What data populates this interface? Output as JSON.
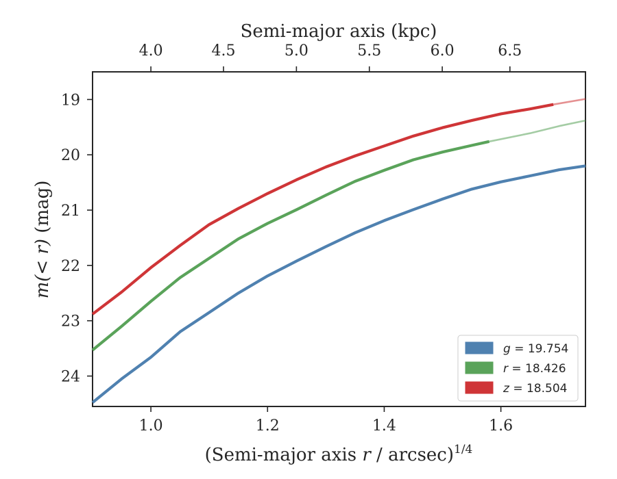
{
  "chart_data": {
    "type": "line",
    "xlabel": "(Semi-major axis r / arcsec)",
    "xlabel_exponent": "1/4",
    "ylabel": "m(< r) (mag)",
    "top_xlabel": "Semi-major axis (kpc)",
    "xlim": [
      0.9,
      1.745
    ],
    "ylim": [
      24.55,
      18.5
    ],
    "y_inverted": true,
    "xticks": [
      1.0,
      1.2,
      1.4,
      1.6
    ],
    "xtick_labels": [
      "1.0",
      "1.2",
      "1.4",
      "1.6"
    ],
    "yticks": [
      19,
      20,
      21,
      22,
      23,
      24
    ],
    "ytick_labels": [
      "19",
      "20",
      "21",
      "22",
      "23",
      "24"
    ],
    "top_xticks_kpc": [
      4.0,
      4.5,
      5.0,
      5.5,
      6.0,
      6.5
    ],
    "top_xtick_labels": [
      "4.0",
      "4.5",
      "5.0",
      "5.5",
      "6.0",
      "6.5"
    ],
    "kpc_conversion_note_units": "top axis kpc at bottom-axis positions",
    "top_xtick_positions": [
      1.0,
      1.1245,
      1.2495,
      1.3745,
      1.4995,
      1.6155
    ],
    "grid": false,
    "legend_location": "lower right",
    "series": [
      {
        "name": "g = 19.754",
        "legend_var": "g",
        "legend_value": "19.754",
        "color": "#4f81b0",
        "x": [
          0.9,
          0.95,
          1.0,
          1.05,
          1.1,
          1.15,
          1.2,
          1.25,
          1.3,
          1.35,
          1.4,
          1.45,
          1.5,
          1.55,
          1.6,
          1.65,
          1.7,
          1.745
        ],
        "y": [
          24.48,
          24.05,
          23.66,
          23.2,
          22.85,
          22.5,
          22.19,
          21.92,
          21.66,
          21.41,
          21.19,
          20.99,
          20.8,
          20.62,
          20.49,
          20.38,
          20.27,
          20.2
        ],
        "faded_from_x": 1.745
      },
      {
        "name": "r = 18.426",
        "legend_var": "r",
        "legend_value": "18.426",
        "color": "#5aa35a",
        "x": [
          0.9,
          0.95,
          1.0,
          1.05,
          1.1,
          1.15,
          1.2,
          1.25,
          1.3,
          1.35,
          1.4,
          1.45,
          1.5,
          1.55,
          1.58,
          1.65,
          1.7,
          1.745
        ],
        "y": [
          23.53,
          23.1,
          22.65,
          22.22,
          21.87,
          21.52,
          21.24,
          20.99,
          20.73,
          20.48,
          20.28,
          20.09,
          19.95,
          19.83,
          19.76,
          19.61,
          19.48,
          19.38
        ],
        "faded_from_x": 1.58
      },
      {
        "name": "z = 18.504",
        "legend_var": "z",
        "legend_value": "18.504",
        "color": "#cf3537",
        "x": [
          0.9,
          0.95,
          1.0,
          1.05,
          1.1,
          1.15,
          1.2,
          1.25,
          1.3,
          1.35,
          1.4,
          1.45,
          1.5,
          1.55,
          1.6,
          1.65,
          1.69,
          1.745
        ],
        "y": [
          22.88,
          22.48,
          22.04,
          21.64,
          21.26,
          20.97,
          20.7,
          20.45,
          20.22,
          20.02,
          19.84,
          19.66,
          19.51,
          19.38,
          19.26,
          19.17,
          19.09,
          18.99
        ],
        "faded_from_x": 1.69
      }
    ]
  }
}
